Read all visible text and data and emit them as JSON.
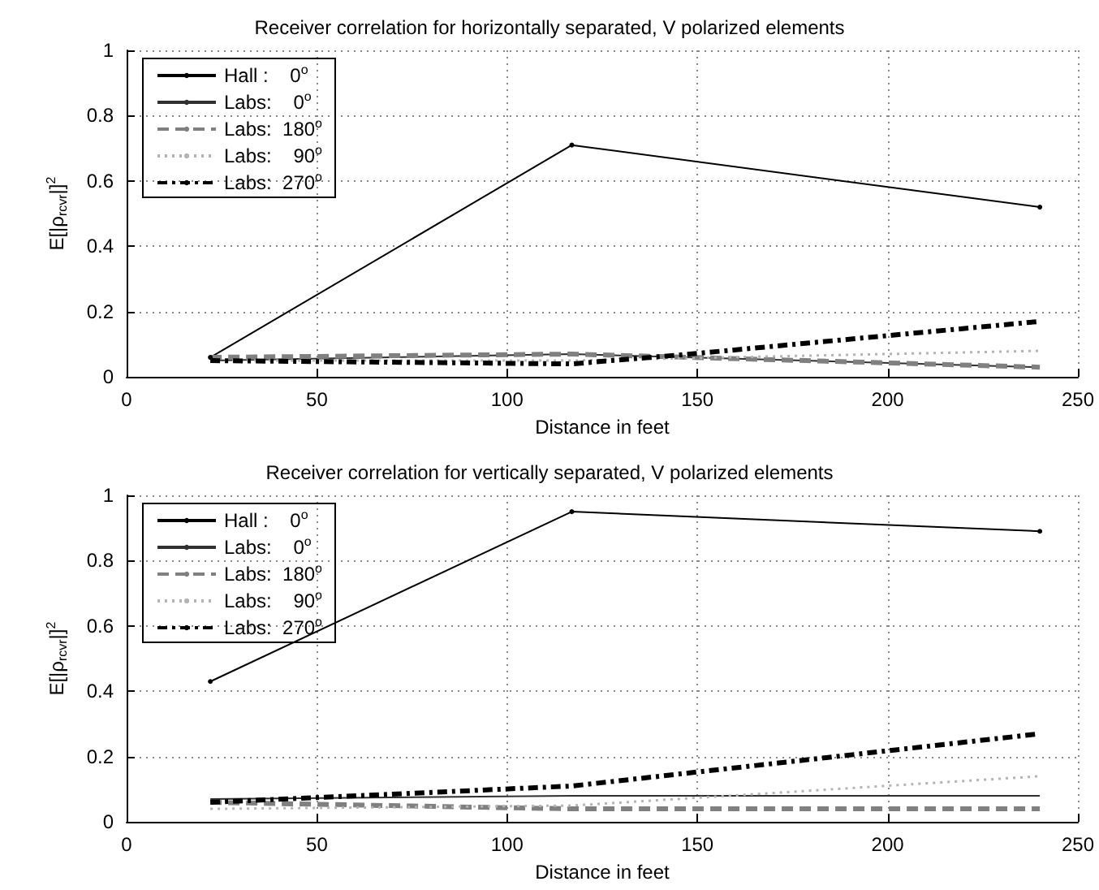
{
  "chart_data": [
    {
      "type": "line",
      "title": "Receiver correlation for horizontally separated, V polarized elements",
      "xlabel": "Distance in feet",
      "ylabel": "E[|ρ$_{rcvr}$|]$^{2}$",
      "x": [
        22,
        117,
        240
      ],
      "xlim": [
        0,
        250
      ],
      "xticks": [
        0,
        50,
        100,
        150,
        200,
        250
      ],
      "ylim": [
        0,
        1
      ],
      "yticks": [
        0,
        0.2,
        0.4,
        0.6,
        0.8,
        1
      ],
      "grid": true,
      "legend": "top left",
      "series": [
        {
          "name": "Hall :    0$^{o}$",
          "color": "#000000",
          "values": [
            0.06,
            0.71,
            0.52
          ],
          "marker": "circle",
          "line_style": "solid"
        },
        {
          "name": "Labs:    0$^{o}$",
          "color": "#303030",
          "values": [
            0.05,
            0.07,
            0.03
          ],
          "marker": "none",
          "line_style": "solid"
        },
        {
          "name": "Labs:  180$^{o}$",
          "color": "#808080",
          "values": [
            0.06,
            0.07,
            0.03
          ],
          "marker": "none",
          "line_style": "dashed"
        },
        {
          "name": "Labs:    90$^{o}$",
          "color": "#b4b4b4",
          "values": [
            0.05,
            0.05,
            0.08
          ],
          "marker": "none",
          "line_style": "dotted"
        },
        {
          "name": "Labs:  270$^{o}$",
          "color": "#000000",
          "x": [
            22,
            117,
            148,
            240
          ],
          "values": [
            0.05,
            0.04,
            0.07,
            0.17
          ],
          "marker": "none",
          "line_style": "dashdot"
        }
      ]
    },
    {
      "type": "line",
      "title": "Receiver correlation for vertically separated, V polarized elements",
      "xlabel": "Distance in feet",
      "ylabel": "E[|ρ$_{rcvr}$|]$^{2}$",
      "x": [
        22,
        117,
        240
      ],
      "xlim": [
        0,
        250
      ],
      "xticks": [
        0,
        50,
        100,
        150,
        200,
        250
      ],
      "ylim": [
        0,
        1
      ],
      "yticks": [
        0,
        0.2,
        0.4,
        0.6,
        0.8,
        1
      ],
      "grid": true,
      "legend": "top left",
      "series": [
        {
          "name": "Hall :    0$^{o}$",
          "color": "#000000",
          "values": [
            0.43,
            0.95,
            0.89
          ],
          "marker": "circle",
          "line_style": "solid"
        },
        {
          "name": "Labs:    0$^{o}$",
          "color": "#303030",
          "values": [
            0.07,
            0.08,
            0.08
          ],
          "marker": "none",
          "line_style": "solid"
        },
        {
          "name": "Labs:  180$^{o}$",
          "color": "#808080",
          "values": [
            0.06,
            0.04,
            0.04
          ],
          "marker": "none",
          "line_style": "dashed"
        },
        {
          "name": "Labs:    90$^{o}$",
          "color": "#b4b4b4",
          "values": [
            0.04,
            0.05,
            0.14
          ],
          "marker": "none",
          "line_style": "dotted"
        },
        {
          "name": "Labs:  270$^{o}$",
          "color": "#000000",
          "values": [
            0.06,
            0.11,
            0.27
          ],
          "marker": "none",
          "line_style": "dashdot"
        }
      ]
    }
  ]
}
